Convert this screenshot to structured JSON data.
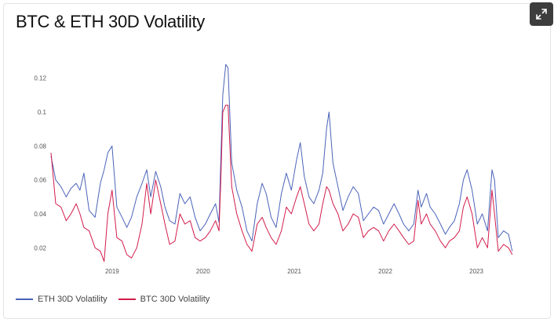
{
  "title": "BTC & ETH 30D Volatility",
  "colors": {
    "eth": "#4a63b8",
    "btc": "#d21c4b",
    "expand_button": "#3d3d3d"
  },
  "expand_button": {
    "icon": "expand-icon"
  },
  "chart_data": {
    "type": "line",
    "title": "BTC & ETH 30D Volatility",
    "xlabel": "",
    "ylabel": "",
    "xlim": [
      "2018-05-01",
      "2023-06-01"
    ],
    "ylim": [
      0.01,
      0.13
    ],
    "x_ticks": [
      "2019",
      "2020",
      "2021",
      "2022",
      "2023"
    ],
    "y_ticks": [
      "0.02",
      "0.04",
      "0.06",
      "0.08",
      "0.1",
      "0.12"
    ],
    "grid": false,
    "legend_position": "bottom-left",
    "series": [
      {
        "name": "ETH 30D Volatility",
        "color": "#4a63b8",
        "x": [
          "2018-05-01",
          "2018-05-20",
          "2018-06-10",
          "2018-07-01",
          "2018-07-20",
          "2018-08-10",
          "2018-08-25",
          "2018-09-10",
          "2018-10-01",
          "2018-10-25",
          "2018-11-15",
          "2018-11-30",
          "2018-12-15",
          "2019-01-01",
          "2019-01-20",
          "2019-02-10",
          "2019-03-01",
          "2019-03-20",
          "2019-04-10",
          "2019-05-01",
          "2019-05-20",
          "2019-06-05",
          "2019-06-25",
          "2019-07-15",
          "2019-08-01",
          "2019-08-20",
          "2019-09-10",
          "2019-09-30",
          "2019-10-20",
          "2019-11-10",
          "2019-11-30",
          "2019-12-20",
          "2020-01-10",
          "2020-01-30",
          "2020-02-20",
          "2020-03-05",
          "2020-03-12",
          "2020-03-20",
          "2020-04-01",
          "2020-04-10",
          "2020-04-25",
          "2020-05-15",
          "2020-06-05",
          "2020-06-25",
          "2020-07-15",
          "2020-08-05",
          "2020-08-25",
          "2020-09-10",
          "2020-09-30",
          "2020-10-20",
          "2020-11-10",
          "2020-11-30",
          "2020-12-20",
          "2021-01-10",
          "2021-01-25",
          "2021-02-10",
          "2021-03-01",
          "2021-03-20",
          "2021-04-10",
          "2021-04-25",
          "2021-05-10",
          "2021-05-20",
          "2021-06-05",
          "2021-06-25",
          "2021-07-15",
          "2021-08-05",
          "2021-08-25",
          "2021-09-15",
          "2021-10-05",
          "2021-10-25",
          "2021-11-15",
          "2021-12-05",
          "2021-12-25",
          "2022-01-15",
          "2022-02-05",
          "2022-02-25",
          "2022-03-15",
          "2022-04-05",
          "2022-04-25",
          "2022-05-12",
          "2022-05-25",
          "2022-06-15",
          "2022-06-30",
          "2022-07-20",
          "2022-08-10",
          "2022-08-30",
          "2022-09-15",
          "2022-10-05",
          "2022-10-25",
          "2022-11-10",
          "2022-11-25",
          "2022-12-15",
          "2023-01-05",
          "2023-01-25",
          "2023-02-15",
          "2023-03-05",
          "2023-03-15",
          "2023-03-30",
          "2023-04-20",
          "2023-05-10",
          "2023-05-25"
        ],
        "values": [
          0.074,
          0.06,
          0.056,
          0.05,
          0.055,
          0.058,
          0.054,
          0.064,
          0.042,
          0.038,
          0.058,
          0.066,
          0.076,
          0.08,
          0.044,
          0.038,
          0.032,
          0.038,
          0.05,
          0.058,
          0.066,
          0.05,
          0.065,
          0.056,
          0.044,
          0.036,
          0.034,
          0.052,
          0.046,
          0.05,
          0.038,
          0.03,
          0.034,
          0.04,
          0.046,
          0.035,
          0.072,
          0.11,
          0.128,
          0.126,
          0.07,
          0.054,
          0.044,
          0.03,
          0.024,
          0.046,
          0.058,
          0.052,
          0.038,
          0.032,
          0.052,
          0.064,
          0.054,
          0.072,
          0.082,
          0.062,
          0.05,
          0.046,
          0.054,
          0.064,
          0.09,
          0.1,
          0.07,
          0.056,
          0.042,
          0.05,
          0.056,
          0.052,
          0.036,
          0.04,
          0.044,
          0.042,
          0.034,
          0.04,
          0.046,
          0.04,
          0.034,
          0.03,
          0.034,
          0.054,
          0.044,
          0.052,
          0.044,
          0.04,
          0.034,
          0.028,
          0.032,
          0.036,
          0.046,
          0.06,
          0.066,
          0.054,
          0.034,
          0.04,
          0.03,
          0.066,
          0.06,
          0.026,
          0.03,
          0.028,
          0.018
        ]
      },
      {
        "name": "BTC 30D Volatility",
        "color": "#d21c4b",
        "x": [
          "2018-05-01",
          "2018-05-20",
          "2018-06-10",
          "2018-07-01",
          "2018-07-20",
          "2018-08-10",
          "2018-08-25",
          "2018-09-10",
          "2018-10-01",
          "2018-10-25",
          "2018-11-15",
          "2018-11-30",
          "2018-12-15",
          "2019-01-01",
          "2019-01-20",
          "2019-02-10",
          "2019-03-01",
          "2019-03-20",
          "2019-04-10",
          "2019-05-01",
          "2019-05-20",
          "2019-06-05",
          "2019-06-25",
          "2019-07-15",
          "2019-08-01",
          "2019-08-20",
          "2019-09-10",
          "2019-09-30",
          "2019-10-20",
          "2019-11-10",
          "2019-11-30",
          "2019-12-20",
          "2020-01-10",
          "2020-01-30",
          "2020-02-20",
          "2020-03-05",
          "2020-03-12",
          "2020-03-20",
          "2020-04-01",
          "2020-04-10",
          "2020-04-25",
          "2020-05-15",
          "2020-06-05",
          "2020-06-25",
          "2020-07-15",
          "2020-08-05",
          "2020-08-25",
          "2020-09-10",
          "2020-09-30",
          "2020-10-20",
          "2020-11-10",
          "2020-11-30",
          "2020-12-20",
          "2021-01-10",
          "2021-01-25",
          "2021-02-10",
          "2021-03-01",
          "2021-03-20",
          "2021-04-10",
          "2021-04-25",
          "2021-05-10",
          "2021-05-20",
          "2021-06-05",
          "2021-06-25",
          "2021-07-15",
          "2021-08-05",
          "2021-08-25",
          "2021-09-15",
          "2021-10-05",
          "2021-10-25",
          "2021-11-15",
          "2021-12-05",
          "2021-12-25",
          "2022-01-15",
          "2022-02-05",
          "2022-02-25",
          "2022-03-15",
          "2022-04-05",
          "2022-04-25",
          "2022-05-12",
          "2022-05-25",
          "2022-06-15",
          "2022-06-30",
          "2022-07-20",
          "2022-08-10",
          "2022-08-30",
          "2022-09-15",
          "2022-10-05",
          "2022-10-25",
          "2022-11-10",
          "2022-11-25",
          "2022-12-15",
          "2023-01-05",
          "2023-01-25",
          "2023-02-15",
          "2023-03-05",
          "2023-03-15",
          "2023-03-30",
          "2023-04-20",
          "2023-05-10",
          "2023-05-25"
        ],
        "values": [
          0.076,
          0.046,
          0.044,
          0.036,
          0.04,
          0.046,
          0.04,
          0.032,
          0.03,
          0.02,
          0.018,
          0.012,
          0.04,
          0.054,
          0.026,
          0.024,
          0.016,
          0.014,
          0.02,
          0.034,
          0.058,
          0.04,
          0.06,
          0.046,
          0.034,
          0.022,
          0.024,
          0.04,
          0.034,
          0.036,
          0.026,
          0.024,
          0.026,
          0.03,
          0.036,
          0.03,
          0.06,
          0.1,
          0.104,
          0.104,
          0.056,
          0.04,
          0.03,
          0.022,
          0.018,
          0.034,
          0.038,
          0.032,
          0.026,
          0.022,
          0.03,
          0.044,
          0.04,
          0.05,
          0.056,
          0.046,
          0.034,
          0.03,
          0.034,
          0.046,
          0.056,
          0.054,
          0.046,
          0.04,
          0.03,
          0.034,
          0.04,
          0.038,
          0.026,
          0.03,
          0.032,
          0.03,
          0.024,
          0.03,
          0.034,
          0.03,
          0.026,
          0.022,
          0.024,
          0.048,
          0.034,
          0.04,
          0.034,
          0.03,
          0.024,
          0.02,
          0.024,
          0.026,
          0.03,
          0.044,
          0.05,
          0.04,
          0.02,
          0.026,
          0.02,
          0.054,
          0.04,
          0.018,
          0.022,
          0.02,
          0.016
        ]
      }
    ]
  }
}
